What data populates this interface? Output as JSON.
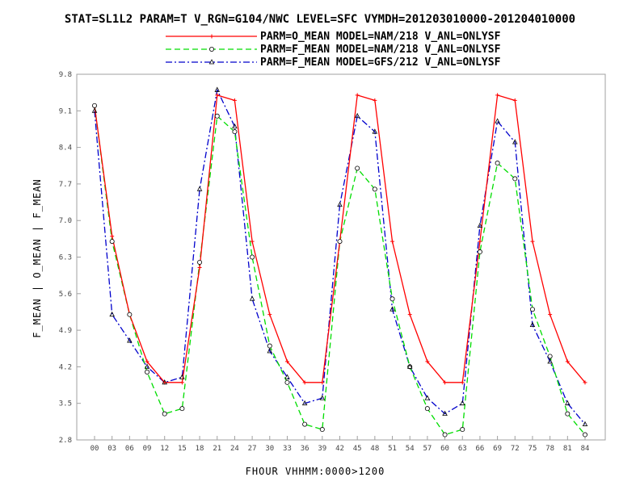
{
  "title": "STAT=SL1L2 PARAM=T V_RGN=G104/NWC LEVEL=SFC VYMDH=201203010000-201204010000",
  "colors": {
    "series_1": "#ff0000",
    "series_2": "#00dd00",
    "series_3": "#0000cc",
    "frame": "#a0a0a0",
    "text": "#000000"
  },
  "chart_data": {
    "type": "line",
    "title": "STAT=SL1L2 PARAM=T V_RGN=G104/NWC LEVEL=SFC VYMDH=201203010000-201204010000",
    "xlabel": "FHOUR VHHMM:0000>1200",
    "ylabel": "F_MEAN | O_MEAN | F_MEAN",
    "x": [
      "00",
      "03",
      "06",
      "09",
      "12",
      "15",
      "18",
      "21",
      "24",
      "27",
      "30",
      "33",
      "36",
      "39",
      "42",
      "45",
      "48",
      "51",
      "54",
      "57",
      "60",
      "63",
      "66",
      "69",
      "72",
      "75",
      "78",
      "81",
      "84"
    ],
    "ylim": [
      2.8,
      9.8
    ],
    "yticks": [
      "2.8",
      "3.5",
      "4.2",
      "4.9",
      "5.6",
      "6.3",
      "7.0",
      "7.7",
      "8.4",
      "9.1",
      "9.8"
    ],
    "legend_position": "top",
    "grid": false,
    "series": [
      {
        "name": "PARM=O_MEAN MODEL=NAM/218 V_ANL=ONLYSF",
        "color": "#ff0000",
        "line_style": "solid",
        "marker": "plus",
        "values": [
          9.2,
          6.7,
          5.2,
          4.3,
          3.9,
          3.9,
          6.1,
          9.4,
          9.3,
          6.6,
          5.2,
          4.3,
          3.9,
          3.9,
          6.6,
          9.4,
          9.3,
          6.6,
          5.2,
          4.3,
          3.9,
          3.9,
          6.6,
          9.4,
          9.3,
          6.6,
          5.2,
          4.3,
          3.9
        ]
      },
      {
        "name": "PARM=F_MEAN MODEL=NAM/218 V_ANL=ONLYSF",
        "color": "#00dd00",
        "line_style": "dashed",
        "marker": "circle",
        "values": [
          9.2,
          6.6,
          5.2,
          4.1,
          3.3,
          3.4,
          6.2,
          9.0,
          8.7,
          6.3,
          4.6,
          3.9,
          3.1,
          3.0,
          6.6,
          8.0,
          7.6,
          5.5,
          4.2,
          3.4,
          2.9,
          3.0,
          6.4,
          8.1,
          7.8,
          5.3,
          4.4,
          3.3,
          2.9
        ]
      },
      {
        "name": "PARM=F_MEAN MODEL=GFS/212 V_ANL=ONLYSF",
        "color": "#0000cc",
        "line_style": "dash-dot",
        "marker": "triangle",
        "values": [
          9.1,
          5.2,
          4.7,
          4.2,
          3.9,
          4.0,
          7.6,
          9.5,
          8.8,
          5.5,
          4.5,
          4.0,
          3.5,
          3.6,
          7.3,
          9.0,
          8.7,
          5.3,
          4.2,
          3.6,
          3.3,
          3.5,
          6.9,
          8.9,
          8.5,
          5.0,
          4.3,
          3.5,
          3.1
        ]
      }
    ]
  }
}
